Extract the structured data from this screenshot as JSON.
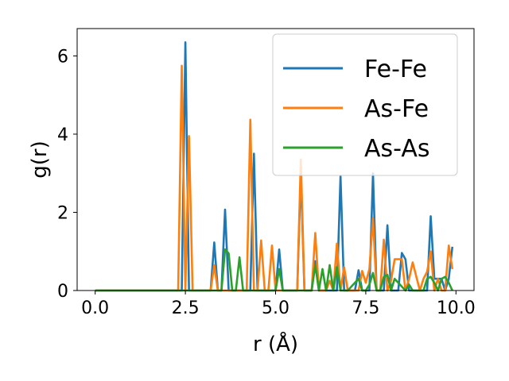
{
  "chart_data": {
    "type": "line",
    "xlabel": "r (Å)",
    "ylabel": "g(r)",
    "xlim": [
      -0.5,
      10.5
    ],
    "ylim": [
      0,
      6.7
    ],
    "xticks": [
      0.0,
      2.5,
      5.0,
      7.5,
      10.0
    ],
    "xtick_labels": [
      "0.0",
      "2.5",
      "5.0",
      "7.5",
      "10.0"
    ],
    "yticks": [
      0,
      2,
      4,
      6
    ],
    "ytick_labels": [
      "0",
      "2",
      "4",
      "6"
    ],
    "grid": false,
    "legend_position": "top-right",
    "series": [
      {
        "name": "Fe-Fe",
        "color": "#1f77b4",
        "x": [
          0.0,
          2.3,
          2.4,
          2.5,
          2.6,
          2.7,
          3.2,
          3.3,
          3.4,
          3.5,
          3.6,
          3.7,
          4.2,
          4.3,
          4.4,
          4.5,
          5.0,
          5.1,
          5.2,
          5.6,
          5.7,
          5.8,
          6.0,
          6.1,
          6.2,
          6.6,
          6.7,
          6.8,
          6.9,
          7.2,
          7.3,
          7.4,
          7.6,
          7.7,
          7.8,
          8.0,
          8.1,
          8.2,
          8.4,
          8.5,
          8.6,
          8.7,
          9.2,
          9.3,
          9.4,
          9.6,
          9.7,
          9.8,
          9.9
        ],
        "values": [
          0,
          0,
          0,
          6.35,
          0,
          0,
          0,
          1.23,
          0,
          0,
          2.07,
          0,
          0,
          0,
          3.5,
          0,
          0,
          1.05,
          0,
          0,
          3.0,
          0,
          0,
          0.75,
          0,
          0,
          0,
          2.92,
          0,
          0,
          0.52,
          0,
          0,
          3.0,
          0,
          0,
          1.67,
          0,
          0,
          0.96,
          0.8,
          0,
          0,
          1.9,
          0.3,
          0.3,
          0,
          0.3,
          1.12
        ]
      },
      {
        "name": "As-Fe",
        "color": "#ff7f0e",
        "x": [
          0.0,
          2.3,
          2.4,
          2.5,
          2.6,
          2.7,
          3.2,
          3.3,
          3.4,
          4.2,
          4.3,
          4.4,
          4.5,
          4.6,
          4.7,
          4.8,
          4.9,
          5.0,
          5.6,
          5.7,
          5.8,
          5.9,
          6.0,
          6.1,
          6.2,
          6.4,
          6.5,
          6.6,
          6.7,
          6.8,
          6.9,
          7.0,
          7.1,
          7.3,
          7.4,
          7.5,
          7.6,
          7.7,
          7.8,
          7.9,
          8.0,
          8.1,
          8.2,
          8.3,
          8.4,
          8.5,
          8.6,
          8.7,
          8.8,
          9.0,
          9.1,
          9.2,
          9.3,
          9.4,
          9.5,
          9.6,
          9.7,
          9.8,
          9.9
        ],
        "values": [
          0,
          0,
          5.75,
          0,
          3.95,
          0,
          0,
          0.65,
          0,
          0,
          4.37,
          0,
          0,
          1.28,
          0,
          0,
          1.15,
          0,
          0,
          3.35,
          0,
          0,
          0,
          1.47,
          0,
          0,
          0.25,
          0,
          1.2,
          0,
          0.6,
          0,
          0,
          0,
          0.5,
          0.2,
          0.55,
          1.85,
          0,
          0,
          1.3,
          0,
          0.25,
          0.8,
          0.8,
          0.8,
          0,
          0.3,
          0.72,
          0,
          0.3,
          0.48,
          1.0,
          0,
          0.3,
          0,
          0,
          1.15,
          0.55
        ]
      },
      {
        "name": "As-As",
        "color": "#2ca02c",
        "x": [
          0.0,
          3.4,
          3.5,
          3.6,
          3.7,
          3.8,
          3.9,
          4.0,
          4.1,
          4.9,
          5.0,
          5.1,
          5.2,
          6.0,
          6.1,
          6.2,
          6.3,
          6.4,
          6.5,
          6.6,
          6.7,
          6.8,
          6.9,
          7.0,
          7.3,
          7.4,
          7.5,
          7.6,
          7.7,
          7.8,
          7.9,
          8.0,
          8.1,
          8.2,
          8.3,
          8.6,
          8.7,
          8.8,
          9.1,
          9.2,
          9.3,
          9.4,
          9.5,
          9.6,
          9.7,
          9.8,
          9.9
        ],
        "values": [
          0,
          0,
          0,
          1.05,
          0.95,
          0,
          0,
          0.85,
          0,
          0,
          0,
          0.55,
          0,
          0,
          0.65,
          0,
          0.55,
          0,
          0.65,
          0,
          0.6,
          0,
          0,
          0,
          0.3,
          0,
          0,
          0.15,
          0.45,
          0,
          0,
          0.35,
          0.4,
          0,
          0.3,
          0,
          0.15,
          0,
          0,
          0.3,
          0.35,
          0.2,
          0,
          0.3,
          0.35,
          0.2,
          0
        ]
      }
    ]
  }
}
